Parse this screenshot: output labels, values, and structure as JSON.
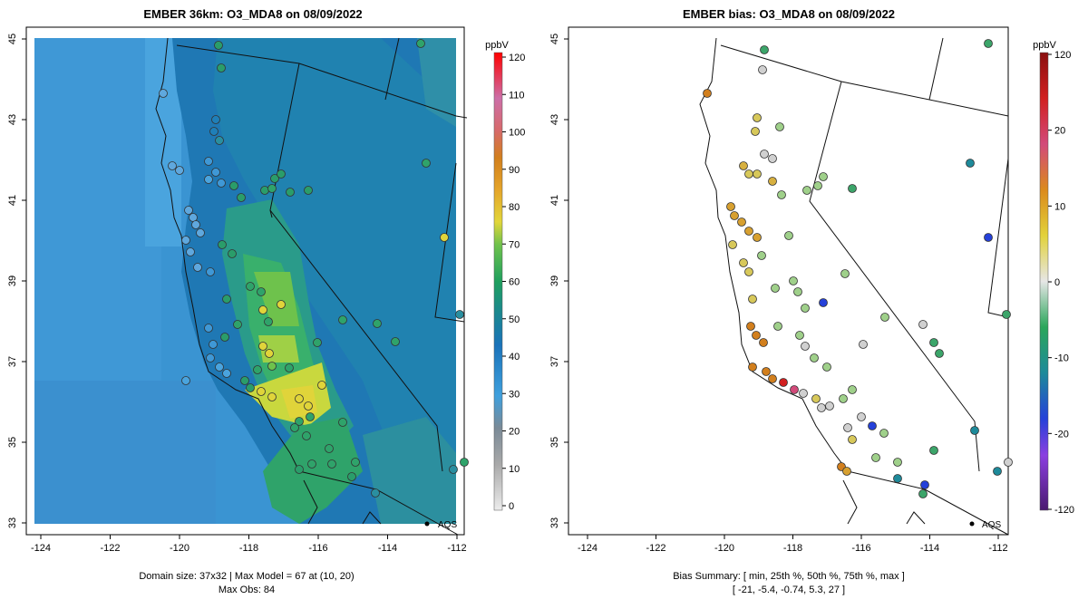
{
  "left_panel": {
    "title": "EMBER 36km: O3_MDA8 on 08/09/2022",
    "footer_line1": "Domain size: 37x32 | Max Model = 67 at (10, 20)",
    "footer_line2": "Max Obs: 84",
    "legend_unit": "ppbV",
    "legend_ticks": [
      "120",
      "110",
      "100",
      "90",
      "80",
      "70",
      "60",
      "50",
      "40",
      "30",
      "20",
      "10",
      "0"
    ],
    "aqs_label": "AQS"
  },
  "right_panel": {
    "title": "EMBER bias: O3_MDA8 on 08/09/2022",
    "footer_line1": "Bias Summary: [ min, 25th %, 50th %, 75th %, max ]",
    "footer_line2": "[ -21,   -5.4,   -0.74,   5.3,   27 ]",
    "legend_unit": "ppbV",
    "legend_ticks": [
      "120",
      "20",
      "10",
      "0",
      "-10",
      "-20",
      "-120"
    ],
    "aqs_label": "AQS"
  },
  "axes": {
    "x_ticks": [
      "-124",
      "-122",
      "-120",
      "-118",
      "-116",
      "-114",
      "-112"
    ],
    "y_ticks": [
      "45",
      "43",
      "41",
      "39",
      "37",
      "35",
      "33"
    ]
  },
  "colors": {
    "ocean_model": "#3b8fce",
    "land_model": "#1f7fb8",
    "valley_model": "#2fa37a",
    "hot_model": "#d6d33a",
    "border": "#111111"
  }
}
